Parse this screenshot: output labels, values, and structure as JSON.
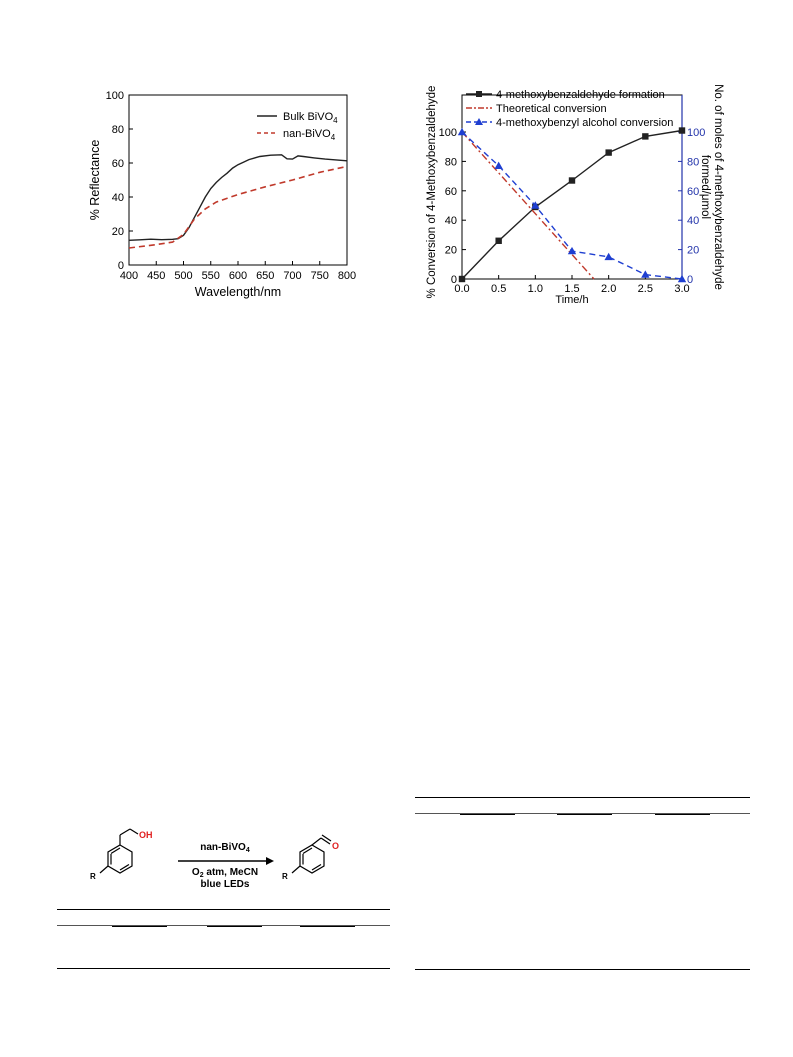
{
  "chart_data": [
    {
      "type": "line",
      "xlabel": "Wavelength/nm",
      "ylabel": "% Reflectance",
      "xlim": [
        400,
        800
      ],
      "ylim": [
        0,
        100
      ],
      "xticks": [
        400,
        450,
        500,
        550,
        600,
        650,
        700,
        750,
        800
      ],
      "yticks": [
        0,
        20,
        40,
        60,
        80,
        100
      ],
      "legend_position": "top-right",
      "series": [
        {
          "name": "Bulk BiVO4",
          "color": "#222222",
          "style": "solid",
          "x": [
            400,
            420,
            440,
            460,
            480,
            490,
            500,
            510,
            520,
            530,
            540,
            550,
            560,
            570,
            580,
            590,
            600,
            610,
            620,
            640,
            660,
            680,
            690,
            700,
            710,
            720,
            740,
            760,
            780,
            800
          ],
          "y": [
            14.5,
            14.8,
            15.2,
            14.9,
            15.1,
            15.5,
            17.5,
            22,
            28,
            34,
            40,
            45,
            48.5,
            51.5,
            54,
            57,
            59,
            60.5,
            62,
            63.8,
            64.6,
            64.8,
            62.5,
            62.3,
            64.2,
            63.8,
            63,
            62.3,
            61.8,
            61.3
          ]
        },
        {
          "name": "nan-BiVO4",
          "color": "#c0392b",
          "style": "dashed",
          "x": [
            400,
            450,
            480,
            500,
            520,
            540,
            560,
            600,
            650,
            700,
            750,
            800
          ],
          "y": [
            10,
            12,
            13.5,
            18,
            27,
            33,
            37,
            41.5,
            46,
            50,
            54.5,
            58
          ]
        }
      ]
    },
    {
      "type": "line",
      "xlabel": "Time/h",
      "ylabel": "% Conversion of 4-Methoxybenzaldehyde",
      "y2label": "No. of moles of 4-methoxybenzaldehyde formed/μmol",
      "xlim": [
        0,
        3
      ],
      "ylim": [
        0,
        100
      ],
      "y2lim": [
        0,
        100
      ],
      "xticks": [
        0.0,
        0.5,
        1.0,
        1.5,
        2.0,
        2.5,
        3.0
      ],
      "yticks": [
        0,
        20,
        40,
        60,
        80,
        100
      ],
      "legend_position": "top-left",
      "series": [
        {
          "name": "4-methoxybenzaldehyde formation",
          "color": "#222222",
          "style": "solid",
          "marker": "square",
          "x": [
            0.0,
            0.5,
            1.0,
            1.5,
            2.0,
            2.5,
            3.0
          ],
          "y": [
            0,
            26,
            49,
            67,
            86,
            97,
            101
          ]
        },
        {
          "name": "Theoretical conversion",
          "color": "#c0392b",
          "style": "dashdot",
          "x": [
            0.0,
            1.8
          ],
          "y": [
            100,
            0
          ]
        },
        {
          "name": "4-methoxybenzyl alcohol conversion",
          "color": "#1f3fd1",
          "style": "dashed",
          "marker": "triangle",
          "x": [
            0.0,
            0.5,
            1.0,
            1.5,
            2.0,
            2.5,
            3.0
          ],
          "y": [
            100,
            77,
            50,
            19,
            15,
            3,
            0
          ]
        }
      ]
    }
  ],
  "scheme": {
    "reactant_group": "OH",
    "product_group": "O",
    "substituent": "R",
    "catalyst": "nan-BiVO",
    "catalyst_sub": "4",
    "cond1_pre": "O",
    "cond1_sub": "2",
    "cond1_post": " atm, MeCN",
    "cond2": "blue LEDs"
  }
}
